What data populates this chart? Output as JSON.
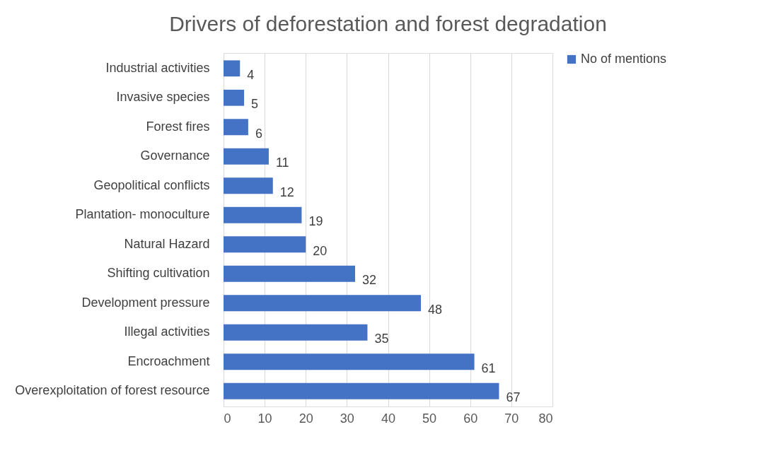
{
  "chart_data": {
    "type": "bar",
    "orientation": "horizontal",
    "title": "Drivers of deforestation and forest degradation",
    "categories": [
      "Industrial activities",
      "Invasive species",
      "Forest fires",
      "Governance",
      "Geopolitical conflicts",
      "Plantation- monoculture",
      "Natural Hazard",
      "Shifting cultivation",
      "Development pressure",
      "Illegal activities",
      "Encroachment",
      "Overexploitation of forest resource"
    ],
    "series": [
      {
        "name": "No of mentions",
        "color": "#4472c4",
        "values": [
          4,
          5,
          6,
          11,
          12,
          19,
          20,
          32,
          48,
          35,
          61,
          67
        ]
      }
    ],
    "xlim": [
      0,
      80
    ],
    "xticks": [
      0,
      10,
      20,
      30,
      40,
      50,
      60,
      70,
      80
    ],
    "grid": "x",
    "legend": "right",
    "data_labels": true
  }
}
